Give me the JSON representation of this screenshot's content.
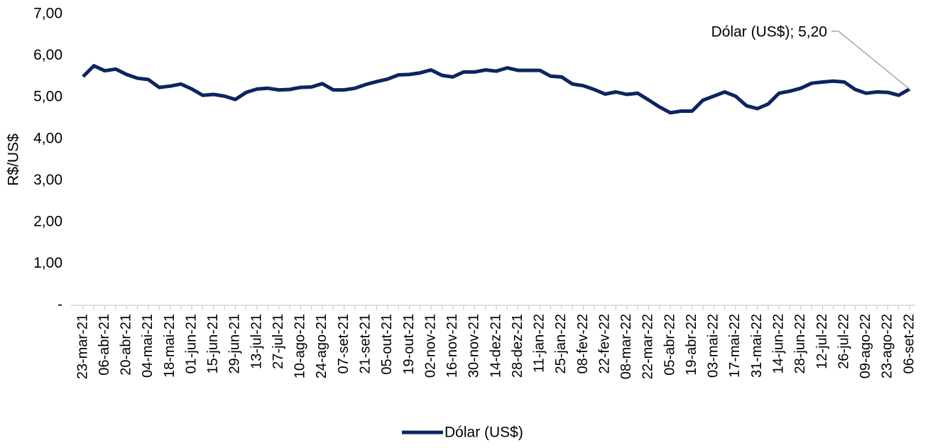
{
  "chart_data": {
    "type": "line",
    "y_label": "R$/US$",
    "categories": [
      "23-mar-21",
      null,
      "06-abr-21",
      null,
      "20-abr-21",
      null,
      "04-mai-21",
      null,
      "18-mai-21",
      null,
      "01-jun-21",
      null,
      "15-jun-21",
      null,
      "29-jun-21",
      null,
      "13-jul-21",
      null,
      "27-jul-21",
      null,
      "10-ago-21",
      null,
      "24-ago-21",
      null,
      "07-set-21",
      null,
      "21-set-21",
      null,
      "05-out-21",
      null,
      "19-out-21",
      null,
      "02-nov-21",
      null,
      "16-nov-21",
      null,
      "30-nov-21",
      null,
      "14-dez-21",
      null,
      "28-dez-21",
      null,
      "11-jan-22",
      null,
      "25-jan-22",
      null,
      "08-fev-22",
      null,
      "22-fev-22",
      null,
      "08-mar-22",
      null,
      "22-mar-22",
      null,
      "05-abr-22",
      null,
      "19-abr-22",
      null,
      "03-mai-22",
      null,
      "17-mai-22",
      null,
      "31-mai-22",
      null,
      "14-jun-22",
      null,
      "28-jun-22",
      null,
      "12-jul-22",
      null,
      "26-jul-22",
      null,
      "09-ago-22",
      null,
      "23-ago-22",
      null,
      "06-set-22"
    ],
    "series": [
      {
        "name": "Dólar (US$)",
        "color": "#0d2461",
        "values": [
          5.5,
          5.76,
          5.64,
          5.68,
          5.55,
          5.46,
          5.43,
          5.24,
          5.27,
          5.32,
          5.2,
          5.05,
          5.07,
          5.03,
          4.95,
          5.12,
          5.2,
          5.22,
          5.18,
          5.19,
          5.24,
          5.25,
          5.33,
          5.18,
          5.18,
          5.22,
          5.31,
          5.38,
          5.44,
          5.54,
          5.55,
          5.59,
          5.66,
          5.53,
          5.49,
          5.61,
          5.61,
          5.66,
          5.63,
          5.71,
          5.65,
          5.65,
          5.65,
          5.51,
          5.49,
          5.32,
          5.28,
          5.19,
          5.08,
          5.13,
          5.07,
          5.1,
          4.94,
          4.77,
          4.63,
          4.67,
          4.67,
          4.93,
          5.03,
          5.13,
          5.03,
          4.8,
          4.73,
          4.84,
          5.1,
          5.15,
          5.22,
          5.34,
          5.37,
          5.39,
          5.37,
          5.19,
          5.1,
          5.13,
          5.12,
          5.05,
          5.2
        ],
        "value_labels": [
          null,
          null,
          null,
          null,
          null,
          null,
          null,
          null,
          null,
          null,
          null,
          null,
          null,
          null,
          null,
          null,
          null,
          null,
          null,
          null,
          null,
          null,
          null,
          null,
          null,
          null,
          null,
          null,
          null,
          null,
          null,
          null,
          null,
          null,
          null,
          null,
          null,
          null,
          null,
          null,
          null,
          null,
          null,
          null,
          null,
          null,
          null,
          null,
          null,
          null,
          null,
          null,
          null,
          null,
          null,
          null,
          null,
          null,
          null,
          null,
          null,
          null,
          null,
          null,
          null,
          null,
          null,
          null,
          null,
          null,
          null,
          null,
          null,
          null,
          null,
          null,
          "Dólar (US$); 5,20"
        ]
      }
    ],
    "ylim": [
      0,
      7
    ],
    "yticks": [
      {
        "value": 0,
        "label": "-"
      },
      {
        "value": 1,
        "label": "1,00"
      },
      {
        "value": 2,
        "label": "2,00"
      },
      {
        "value": 3,
        "label": "3,00"
      },
      {
        "value": 4,
        "label": "4,00"
      },
      {
        "value": 5,
        "label": "5,00"
      },
      {
        "value": 6,
        "label": "6,00"
      },
      {
        "value": 7,
        "label": "7,00"
      }
    ],
    "grid": false,
    "legend": "bottom"
  }
}
